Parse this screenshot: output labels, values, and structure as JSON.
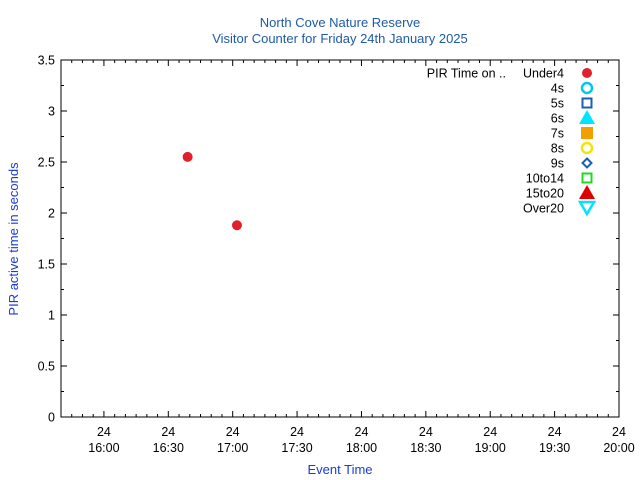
{
  "chart_data": {
    "type": "scatter",
    "title": "North Cove Nature Reserve",
    "subtitle": "Visitor Counter for Friday 24th January 2025",
    "xlabel": "Event Time",
    "ylabel": "PIR active time in seconds",
    "xlim": [
      "2025-01-24 15:40",
      "2025-01-24 20:00"
    ],
    "ylim": [
      0,
      3.5
    ],
    "y_ticks": [
      "0",
      "0.5",
      "1",
      "1.5",
      "2",
      "2.5",
      "3",
      "3.5"
    ],
    "x_ticks": [
      {
        "day": "24",
        "time": "16:00"
      },
      {
        "day": "24",
        "time": "16:30"
      },
      {
        "day": "24",
        "time": "17:00"
      },
      {
        "day": "24",
        "time": "17:30"
      },
      {
        "day": "24",
        "time": "18:00"
      },
      {
        "day": "24",
        "time": "18:30"
      },
      {
        "day": "24",
        "time": "19:00"
      },
      {
        "day": "24",
        "time": "19:30"
      },
      {
        "day": "24",
        "time": "20:00"
      }
    ],
    "grid": false,
    "legend_position": "top-right",
    "legend_title": "PIR Time on ..",
    "series": [
      {
        "name": "Under4",
        "color": "#e0202a",
        "marker": "filled-circle",
        "points": [
          {
            "x": "2025-01-24 16:39",
            "y": 2.55
          },
          {
            "x": "2025-01-24 17:02",
            "y": 1.88
          }
        ]
      },
      {
        "name": "4s",
        "color": "#00c8e8",
        "marker": "open-circle",
        "points": []
      },
      {
        "name": "5s",
        "color": "#1a5fb4",
        "marker": "open-square",
        "points": []
      },
      {
        "name": "6s",
        "color": "#00e5ff",
        "marker": "filled-triangle-up",
        "points": []
      },
      {
        "name": "7s",
        "color": "#f0a000",
        "marker": "filled-square",
        "points": []
      },
      {
        "name": "8s",
        "color": "#f5e400",
        "marker": "open-circle",
        "points": []
      },
      {
        "name": "9s",
        "color": "#1a5fb4",
        "marker": "open-diamond",
        "points": []
      },
      {
        "name": "10to14",
        "color": "#22d922",
        "marker": "open-square",
        "points": []
      },
      {
        "name": "15to20",
        "color": "#e00000",
        "marker": "filled-triangle-up",
        "points": []
      },
      {
        "name": "Over20",
        "color": "#00e5ff",
        "marker": "open-triangle-down",
        "points": []
      }
    ]
  }
}
